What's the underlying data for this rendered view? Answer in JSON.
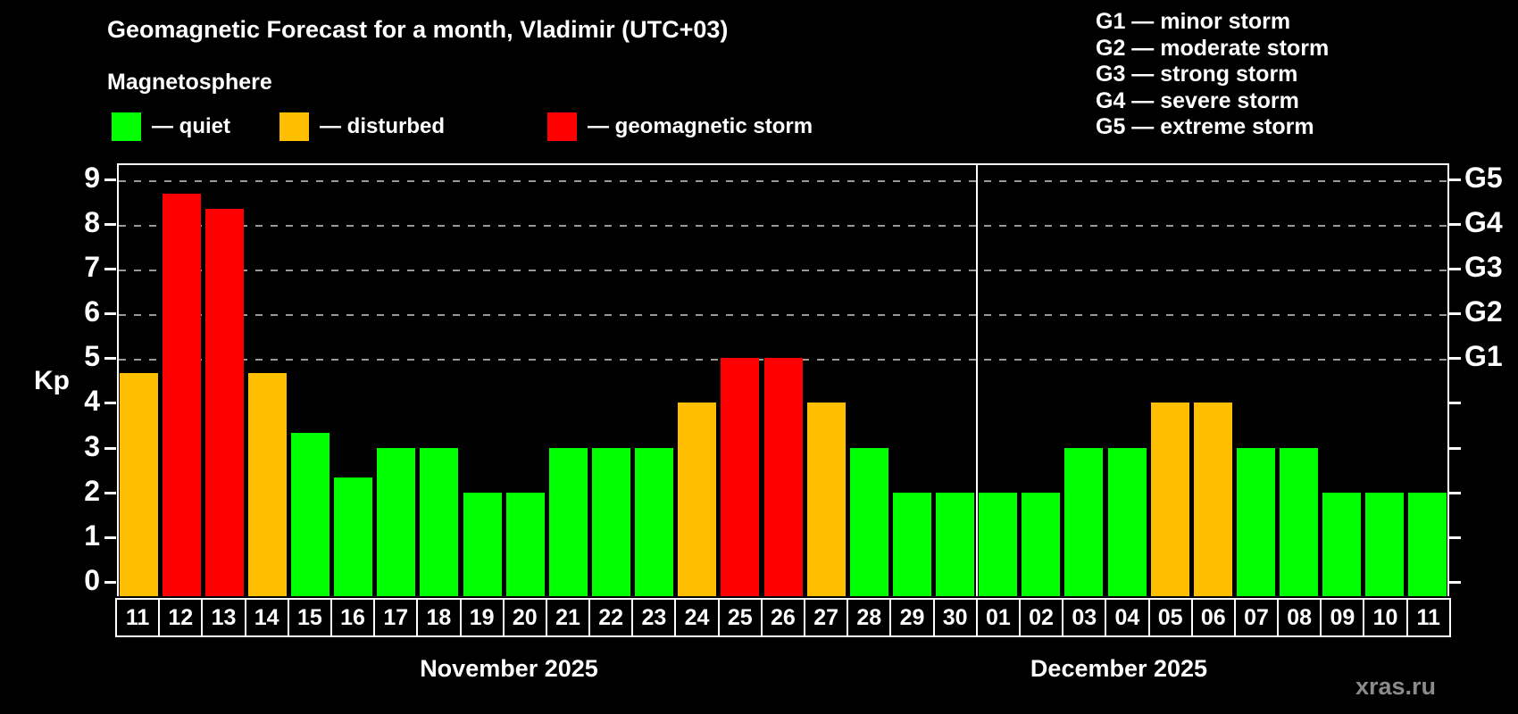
{
  "header": {
    "title": "Geomagnetic Forecast for a month, Vladimir (UTC+03)",
    "subtitle": "Magnetosphere"
  },
  "legend": {
    "items": [
      {
        "key": "quiet",
        "label": "— quiet",
        "color": "#00ff00"
      },
      {
        "key": "disturbed",
        "label": "— disturbed",
        "color": "#ffbf00"
      },
      {
        "key": "storm",
        "label": "— geomagnetic storm",
        "color": "#ff0000"
      }
    ]
  },
  "g_legend": {
    "lines": [
      "G1 — minor storm",
      "G2 — moderate storm",
      "G3 — strong storm",
      "G4 — severe storm",
      "G5 — extreme storm"
    ]
  },
  "y_axis": {
    "label": "Kp",
    "ticks": [
      0,
      1,
      2,
      3,
      4,
      5,
      6,
      7,
      8,
      9
    ]
  },
  "right_axis": {
    "labels": [
      {
        "kp": 5,
        "text": "G1"
      },
      {
        "kp": 6,
        "text": "G2"
      },
      {
        "kp": 7,
        "text": "G3"
      },
      {
        "kp": 8,
        "text": "G4"
      },
      {
        "kp": 9,
        "text": "G5"
      }
    ]
  },
  "footer": {
    "watermark": "xras.ru"
  },
  "chart_data": {
    "type": "bar",
    "title": "Geomagnetic Forecast for a month, Vladimir (UTC+03)",
    "ylabel": "Kp",
    "ylim": [
      0,
      9
    ],
    "grid": "horizontal dashed lines at Kp 5..9 (G1..G5)",
    "gridlines": [
      5,
      6,
      7,
      8,
      9
    ],
    "legend_position": "top-left",
    "colors": {
      "quiet": "#00ff00",
      "disturbed": "#ffbf00",
      "storm": "#ff0000"
    },
    "months": [
      {
        "label": "November 2025",
        "days": [
          {
            "date": "11",
            "kp": 4.67,
            "state": "disturbed"
          },
          {
            "date": "12",
            "kp": 8.67,
            "state": "storm"
          },
          {
            "date": "13",
            "kp": 8.33,
            "state": "storm"
          },
          {
            "date": "14",
            "kp": 4.67,
            "state": "disturbed"
          },
          {
            "date": "15",
            "kp": 3.33,
            "state": "quiet"
          },
          {
            "date": "16",
            "kp": 2.33,
            "state": "quiet"
          },
          {
            "date": "17",
            "kp": 3,
            "state": "quiet"
          },
          {
            "date": "18",
            "kp": 3,
            "state": "quiet"
          },
          {
            "date": "19",
            "kp": 2,
            "state": "quiet"
          },
          {
            "date": "20",
            "kp": 2,
            "state": "quiet"
          },
          {
            "date": "21",
            "kp": 3,
            "state": "quiet"
          },
          {
            "date": "22",
            "kp": 3,
            "state": "quiet"
          },
          {
            "date": "23",
            "kp": 3,
            "state": "quiet"
          },
          {
            "date": "24",
            "kp": 4,
            "state": "disturbed"
          },
          {
            "date": "25",
            "kp": 5,
            "state": "storm"
          },
          {
            "date": "26",
            "kp": 5,
            "state": "storm"
          },
          {
            "date": "27",
            "kp": 4,
            "state": "disturbed"
          },
          {
            "date": "28",
            "kp": 3,
            "state": "quiet"
          },
          {
            "date": "29",
            "kp": 2,
            "state": "quiet"
          },
          {
            "date": "30",
            "kp": 2,
            "state": "quiet"
          }
        ]
      },
      {
        "label": "December 2025",
        "days": [
          {
            "date": "01",
            "kp": 2,
            "state": "quiet"
          },
          {
            "date": "02",
            "kp": 2,
            "state": "quiet"
          },
          {
            "date": "03",
            "kp": 3,
            "state": "quiet"
          },
          {
            "date": "04",
            "kp": 3,
            "state": "quiet"
          },
          {
            "date": "05",
            "kp": 4,
            "state": "disturbed"
          },
          {
            "date": "06",
            "kp": 4,
            "state": "disturbed"
          },
          {
            "date": "07",
            "kp": 3,
            "state": "quiet"
          },
          {
            "date": "08",
            "kp": 3,
            "state": "quiet"
          },
          {
            "date": "09",
            "kp": 2,
            "state": "quiet"
          },
          {
            "date": "10",
            "kp": 2,
            "state": "quiet"
          },
          {
            "date": "11",
            "kp": 2,
            "state": "quiet"
          }
        ]
      }
    ]
  }
}
